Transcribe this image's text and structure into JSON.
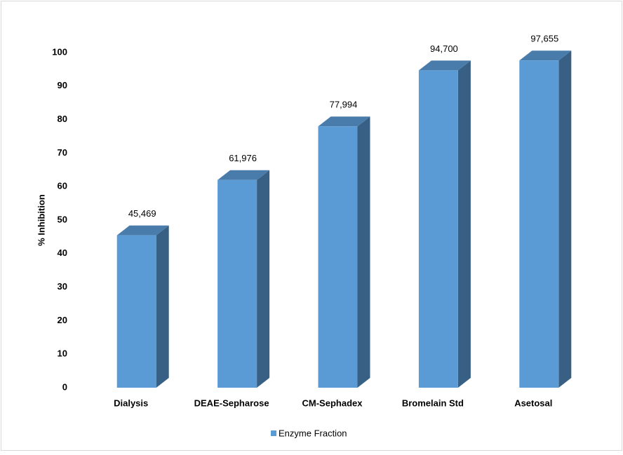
{
  "chart_data": {
    "type": "bar3d",
    "y_label": "% Inhibition",
    "categories": [
      "Dialysis",
      "DEAE-Sepharose",
      "CM-Sephadex",
      "Bromelain Std",
      "Asetosal"
    ],
    "series": [
      {
        "name": "Enzyme Fraction",
        "color": "#5b9bd5",
        "values": [
          45.469,
          61.976,
          77.994,
          94.7,
          97.655
        ],
        "value_labels": [
          "45,469",
          "61,976",
          "77,994",
          "94,700",
          "97,655"
        ]
      }
    ],
    "ylim": [
      0,
      100
    ],
    "yticks": [
      0,
      10,
      20,
      30,
      40,
      50,
      60,
      70,
      80,
      90,
      100
    ],
    "grid": false,
    "legend": "bottom"
  }
}
